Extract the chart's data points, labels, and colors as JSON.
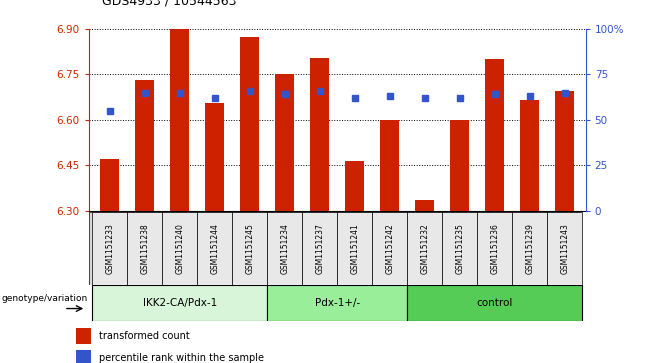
{
  "title": "GDS4933 / 10544563",
  "samples": [
    "GSM1151233",
    "GSM1151238",
    "GSM1151240",
    "GSM1151244",
    "GSM1151245",
    "GSM1151234",
    "GSM1151237",
    "GSM1151241",
    "GSM1151242",
    "GSM1151232",
    "GSM1151235",
    "GSM1151236",
    "GSM1151239",
    "GSM1151243"
  ],
  "red_values": [
    6.47,
    6.73,
    6.905,
    6.655,
    6.875,
    6.75,
    6.805,
    6.465,
    6.6,
    6.335,
    6.6,
    6.8,
    6.665,
    6.695
  ],
  "blue_values": [
    55,
    65,
    65,
    62,
    66,
    64,
    66,
    62,
    63,
    62,
    62,
    64,
    63,
    65
  ],
  "groups": [
    {
      "label": "IKK2-CA/Pdx-1",
      "start": 0,
      "end": 5,
      "color": "#d9f5d9"
    },
    {
      "label": "Pdx-1+/-",
      "start": 5,
      "end": 9,
      "color": "#99ee99"
    },
    {
      "label": "control",
      "start": 9,
      "end": 14,
      "color": "#55cc55"
    }
  ],
  "ymin": 6.3,
  "ymax": 6.9,
  "yticks": [
    6.3,
    6.45,
    6.6,
    6.75,
    6.9
  ],
  "right_yticks": [
    0,
    25,
    50,
    75,
    100
  ],
  "bar_color": "#cc2200",
  "dot_color": "#3355cc",
  "background_color": "#ffffff",
  "axis_color_left": "#cc2200",
  "axis_color_right": "#3355cc",
  "xlabel_bottom": "genotype/variation",
  "legend_red": "transformed count",
  "legend_blue": "percentile rank within the sample",
  "table_bg": "#d8d8d8",
  "cell_bg": "#e8e8e8"
}
